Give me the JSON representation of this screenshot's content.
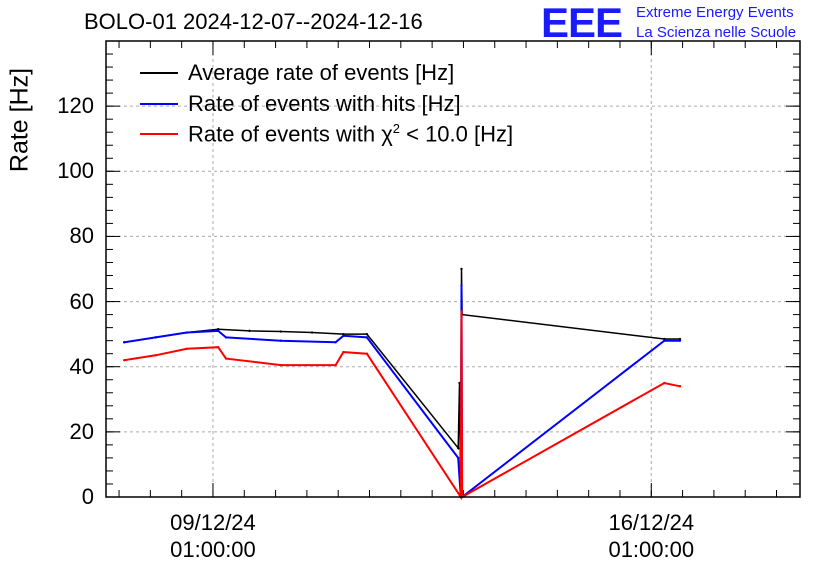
{
  "chart_data": {
    "type": "line",
    "title": "BOLO-01 2024-12-07--2024-12-16",
    "ylabel": "Rate [Hz]",
    "xlabel": "",
    "ylim": [
      0,
      140
    ],
    "xlim": [
      "2024-12-07 08:00",
      "2024-12-18 10:00"
    ],
    "yticks": [
      "0",
      "20",
      "40",
      "60",
      "80",
      "100",
      "120"
    ],
    "xticks": [
      {
        "date": "09/12/24",
        "time": "01:00:00",
        "at": "2024-12-09 01:00"
      },
      {
        "date": "16/12/24",
        "time": "01:00:00",
        "at": "2024-12-16 01:00"
      }
    ],
    "grid": true,
    "legend_position": "top-left",
    "series": [
      {
        "name": "Average rate of events [Hz]",
        "color": "#000000",
        "points": [
          [
            "2024-12-07 15:00",
            47.5
          ],
          [
            "2024-12-08 03:00",
            49
          ],
          [
            "2024-12-08 15:00",
            50.5
          ],
          [
            "2024-12-09 03:00",
            51.5
          ],
          [
            "2024-12-09 15:00",
            51
          ],
          [
            "2024-12-10 03:00",
            50.8
          ],
          [
            "2024-12-10 15:00",
            50.5
          ],
          [
            "2024-12-11 03:00",
            50
          ],
          [
            "2024-12-11 12:00",
            50
          ],
          [
            "2024-12-12 23:00",
            15
          ],
          [
            "2024-12-12 23:30",
            35
          ],
          [
            "2024-12-13 00:00",
            0
          ],
          [
            "2024-12-13 00:15",
            70
          ],
          [
            "2024-12-13 00:30",
            56
          ],
          [
            "2024-12-16 06:00",
            48.5
          ],
          [
            "2024-12-16 12:00",
            48.5
          ]
        ]
      },
      {
        "name": "Rate of events with hits [Hz]",
        "color": "#0000ff",
        "points": [
          [
            "2024-12-07 15:00",
            47.5
          ],
          [
            "2024-12-08 03:00",
            49
          ],
          [
            "2024-12-08 15:00",
            50.5
          ],
          [
            "2024-12-09 03:00",
            51
          ],
          [
            "2024-12-09 06:00",
            49
          ],
          [
            "2024-12-10 03:00",
            48
          ],
          [
            "2024-12-11 00:00",
            47.5
          ],
          [
            "2024-12-11 03:00",
            49.5
          ],
          [
            "2024-12-11 12:00",
            49
          ],
          [
            "2024-12-12 23:00",
            12
          ],
          [
            "2024-12-13 00:00",
            0
          ],
          [
            "2024-12-13 00:15",
            65
          ],
          [
            "2024-12-13 00:30",
            0
          ],
          [
            "2024-12-16 06:00",
            48
          ],
          [
            "2024-12-16 12:00",
            48
          ]
        ]
      },
      {
        "name": "Rate of events with χ2 < 10.0 [Hz]",
        "color": "#ff0000",
        "points": [
          [
            "2024-12-07 15:00",
            42
          ],
          [
            "2024-12-08 03:00",
            43.5
          ],
          [
            "2024-12-08 15:00",
            45.5
          ],
          [
            "2024-12-09 03:00",
            46
          ],
          [
            "2024-12-09 06:00",
            42.5
          ],
          [
            "2024-12-10 03:00",
            40.5
          ],
          [
            "2024-12-11 00:00",
            40.5
          ],
          [
            "2024-12-11 03:00",
            44.5
          ],
          [
            "2024-12-11 12:00",
            44
          ],
          [
            "2024-12-13 00:00",
            0
          ],
          [
            "2024-12-13 00:15",
            57
          ],
          [
            "2024-12-13 00:30",
            0
          ],
          [
            "2024-12-16 06:00",
            35
          ],
          [
            "2024-12-16 12:00",
            34
          ]
        ]
      }
    ]
  },
  "legend": [
    {
      "label": "Average rate of events [Hz]",
      "color": "#000000"
    },
    {
      "label": "Rate of events with hits [Hz]",
      "color": "#0000ff"
    },
    {
      "label_pre": "Rate of events with χ",
      "label_sup": "2",
      "label_post": " < 10.0 [Hz]",
      "color": "#ff0000"
    }
  ],
  "logo": {
    "mark": "EEE",
    "line1": "Extreme Energy Events",
    "line2": "La Scienza nelle Scuole",
    "color": "#1a1aff"
  }
}
